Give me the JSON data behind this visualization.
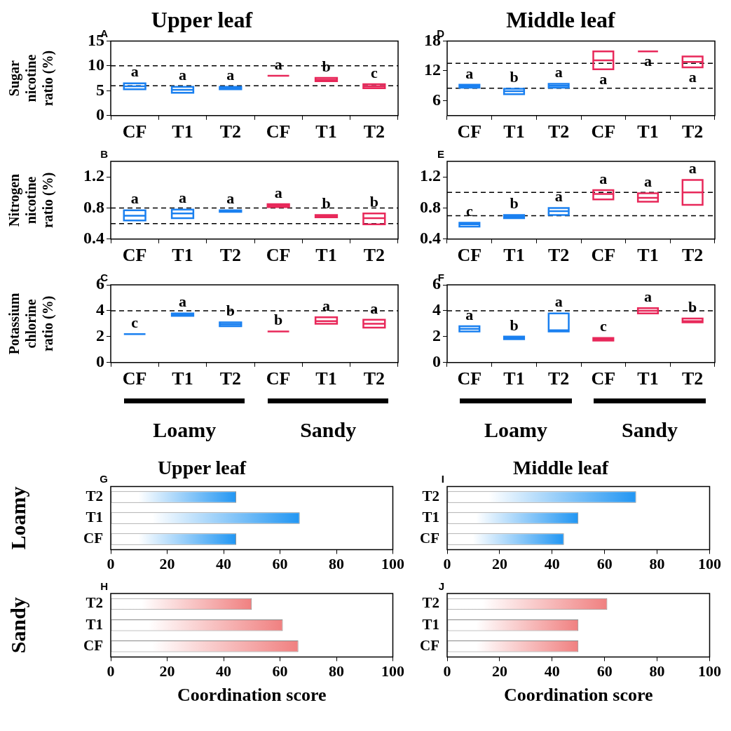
{
  "chart_data": [
    {
      "type": "box",
      "title": "Upper leaf",
      "subtitle": "A",
      "ylabel": "Sugar\nnicotine\nratio (%)",
      "categories": [
        "CF",
        "T1",
        "T2",
        "CF",
        "T1",
        "T2"
      ],
      "ylim": [
        0,
        15
      ],
      "yticks": [
        0,
        5,
        10,
        15
      ],
      "series": [
        {
          "color": "#1a80f0",
          "value_labels": [
            "a",
            "a",
            "a",
            null,
            null,
            null
          ],
          "boxes": [
            {
              "low": 5.3,
              "q1": 5.3,
              "median": 5.9,
              "q3": 6.5,
              "high": 6.5
            },
            {
              "low": 4.6,
              "q1": 4.6,
              "median": 5.2,
              "q3": 5.8,
              "high": 5.8
            },
            {
              "low": 5.3,
              "q1": 5.3,
              "median": 5.5,
              "q3": 5.8,
              "high": 5.8
            },
            null,
            null,
            null
          ]
        },
        {
          "color": "#e8285a",
          "value_labels": [
            null,
            null,
            null,
            "a",
            "b",
            "c"
          ],
          "boxes": [
            null,
            null,
            null,
            {
              "low": 8,
              "q1": 8,
              "median": 8,
              "q3": 8,
              "high": 8
            },
            {
              "low": 6.9,
              "q1": 6.9,
              "median": 7.2,
              "q3": 7.6,
              "high": 7.6
            },
            {
              "low": 5.5,
              "q1": 5.5,
              "median": 5.9,
              "q3": 6.3,
              "high": 6.3
            }
          ]
        }
      ],
      "ref_lines": [
        {
          "axis": "y",
          "value": 10,
          "line_style": "dashed"
        },
        {
          "axis": "y",
          "value": 6,
          "line_style": "dashed"
        }
      ]
    },
    {
      "type": "box",
      "title": "Middle leaf",
      "subtitle": "D",
      "categories": [
        "CF",
        "T1",
        "T2",
        "CF",
        "T1",
        "T2"
      ],
      "ylim": [
        3,
        18
      ],
      "yticks": [
        6,
        12,
        18
      ],
      "series": [
        {
          "color": "#1a80f0",
          "value_labels": [
            "a",
            "b",
            "a",
            null,
            null,
            null
          ],
          "boxes": [
            {
              "low": 8.6,
              "q1": 8.6,
              "median": 8.9,
              "q3": 9.2,
              "high": 9.2
            },
            {
              "low": 7.3,
              "q1": 7.3,
              "median": 7.9,
              "q3": 8.4,
              "high": 8.4
            },
            {
              "low": 8.6,
              "q1": 8.6,
              "median": 9,
              "q3": 9.4,
              "high": 9.4
            },
            null,
            null,
            null
          ]
        },
        {
          "color": "#e8285a",
          "value_labels": [
            null,
            null,
            null,
            "a",
            "a",
            "a"
          ],
          "boxes": [
            null,
            null,
            null,
            {
              "low": 12.3,
              "q1": 12.3,
              "median": 14.1,
              "q3": 15.9,
              "high": 15.9
            },
            {
              "low": 15.9,
              "q1": 15.9,
              "median": 15.9,
              "q3": 15.9,
              "high": 15.9
            },
            {
              "low": 12.7,
              "q1": 12.7,
              "median": 13.8,
              "q3": 14.9,
              "high": 14.9
            }
          ]
        }
      ],
      "ref_lines": [
        {
          "axis": "y",
          "value": 13.5,
          "line_style": "dashed"
        },
        {
          "axis": "y",
          "value": 8.5,
          "line_style": "dashed"
        }
      ]
    },
    {
      "type": "box",
      "subtitle": "B",
      "ylabel": "Nitrogen\nnicotine\nratio (%)",
      "categories": [
        "CF",
        "T1",
        "T2",
        "CF",
        "T1",
        "T2"
      ],
      "ylim": [
        0.4,
        1.4
      ],
      "yticks": [
        0.4,
        0.8,
        1.2
      ],
      "series": [
        {
          "color": "#1a80f0",
          "value_labels": [
            "a",
            "a",
            "a",
            null,
            null,
            null
          ],
          "boxes": [
            {
              "low": 0.64,
              "q1": 0.64,
              "median": 0.7,
              "q3": 0.77,
              "high": 0.77
            },
            {
              "low": 0.67,
              "q1": 0.67,
              "median": 0.73,
              "q3": 0.78,
              "high": 0.78
            },
            {
              "low": 0.75,
              "q1": 0.75,
              "median": 0.76,
              "q3": 0.77,
              "high": 0.77
            },
            null,
            null,
            null
          ]
        },
        {
          "color": "#e8285a",
          "value_labels": [
            null,
            null,
            null,
            "a",
            "b",
            "b"
          ],
          "boxes": [
            null,
            null,
            null,
            {
              "low": 0.81,
              "q1": 0.81,
              "median": 0.83,
              "q3": 0.85,
              "high": 0.85
            },
            {
              "low": 0.68,
              "q1": 0.68,
              "median": 0.7,
              "q3": 0.71,
              "high": 0.71
            },
            {
              "low": 0.59,
              "q1": 0.59,
              "median": 0.67,
              "q3": 0.73,
              "high": 0.73
            }
          ]
        }
      ],
      "ref_lines": [
        {
          "axis": "y",
          "value": 0.8,
          "line_style": "dashed"
        },
        {
          "axis": "y",
          "value": 0.6,
          "line_style": "dashed"
        }
      ]
    },
    {
      "type": "box",
      "subtitle": "E",
      "categories": [
        "CF",
        "T1",
        "T2",
        "CF",
        "T1",
        "T2"
      ],
      "ylim": [
        0.4,
        1.4
      ],
      "yticks": [
        0.4,
        0.8,
        1.2
      ],
      "series": [
        {
          "color": "#1a80f0",
          "value_labels": [
            "c",
            "b",
            "a",
            null,
            null,
            null
          ],
          "boxes": [
            {
              "low": 0.56,
              "q1": 0.56,
              "median": 0.59,
              "q3": 0.61,
              "high": 0.61
            },
            {
              "low": 0.67,
              "q1": 0.67,
              "median": 0.69,
              "q3": 0.71,
              "high": 0.71
            },
            {
              "low": 0.71,
              "q1": 0.71,
              "median": 0.76,
              "q3": 0.8,
              "high": 0.8
            },
            null,
            null,
            null
          ]
        },
        {
          "color": "#e8285a",
          "value_labels": [
            null,
            null,
            null,
            "a",
            "a",
            "a"
          ],
          "boxes": [
            null,
            null,
            null,
            {
              "low": 0.91,
              "q1": 0.91,
              "median": 0.98,
              "q3": 1.03,
              "high": 1.03
            },
            {
              "low": 0.88,
              "q1": 0.88,
              "median": 0.93,
              "q3": 0.99,
              "high": 0.99
            },
            {
              "low": 0.84,
              "q1": 0.84,
              "median": 1,
              "q3": 1.16,
              "high": 1.16
            }
          ]
        }
      ],
      "ref_lines": [
        {
          "axis": "y",
          "value": 1,
          "line_style": "dashed"
        },
        {
          "axis": "y",
          "value": 0.7,
          "line_style": "dashed"
        }
      ]
    },
    {
      "type": "box",
      "subtitle": "C",
      "ylabel": "Potassium\nchlorine\nratio (%)",
      "categories": [
        "CF",
        "T1",
        "T2",
        "CF",
        "T1",
        "T2"
      ],
      "ylim": [
        0,
        6
      ],
      "yticks": [
        0,
        2,
        4,
        6
      ],
      "series": [
        {
          "color": "#1a80f0",
          "value_labels": [
            "c",
            "a",
            "b",
            null,
            null,
            null
          ],
          "boxes": [
            {
              "low": 2.2,
              "q1": 2.2,
              "median": 2.2,
              "q3": 2.2,
              "high": 2.2
            },
            {
              "low": 3.6,
              "q1": 3.6,
              "median": 3.7,
              "q3": 3.8,
              "high": 3.8
            },
            {
              "low": 2.8,
              "q1": 2.8,
              "median": 2.95,
              "q3": 3.1,
              "high": 3.1
            },
            null,
            null,
            null
          ]
        },
        {
          "color": "#e8285a",
          "value_labels": [
            null,
            null,
            null,
            "b",
            "a",
            "a"
          ],
          "boxes": [
            null,
            null,
            null,
            {
              "low": 2.4,
              "q1": 2.4,
              "median": 2.4,
              "q3": 2.4,
              "high": 2.4
            },
            {
              "low": 3,
              "q1": 3,
              "median": 3.2,
              "q3": 3.5,
              "high": 3.5
            },
            {
              "low": 2.7,
              "q1": 2.7,
              "median": 3,
              "q3": 3.3,
              "high": 3.3
            }
          ]
        }
      ],
      "ref_lines": [
        {
          "axis": "y",
          "value": 4,
          "line_style": "dashed"
        }
      ],
      "annotations": [
        "Loamy",
        "Sandy"
      ]
    },
    {
      "type": "box",
      "subtitle": "F",
      "categories": [
        "CF",
        "T1",
        "T2",
        "CF",
        "T1",
        "T2"
      ],
      "ylim": [
        0,
        6
      ],
      "yticks": [
        0,
        2,
        4,
        6
      ],
      "series": [
        {
          "color": "#1a80f0",
          "value_labels": [
            "a",
            "b",
            "a",
            null,
            null,
            null
          ],
          "boxes": [
            {
              "low": 2.4,
              "q1": 2.4,
              "median": 2.6,
              "q3": 2.8,
              "high": 2.8
            },
            {
              "low": 1.8,
              "q1": 1.8,
              "median": 1.9,
              "q3": 2,
              "high": 2
            },
            {
              "low": 2.4,
              "q1": 2.4,
              "median": 2.5,
              "q3": 3.8,
              "high": 3.8
            },
            null,
            null,
            null
          ]
        },
        {
          "color": "#e8285a",
          "value_labels": [
            null,
            null,
            null,
            "c",
            "a",
            "b"
          ],
          "boxes": [
            null,
            null,
            null,
            {
              "low": 1.7,
              "q1": 1.7,
              "median": 1.8,
              "q3": 1.9,
              "high": 1.9
            },
            {
              "low": 3.8,
              "q1": 3.8,
              "median": 4,
              "q3": 4.2,
              "high": 4.2
            },
            {
              "low": 3.1,
              "q1": 3.1,
              "median": 3.2,
              "q3": 3.4,
              "high": 3.4
            }
          ]
        }
      ],
      "ref_lines": [
        {
          "axis": "y",
          "value": 4,
          "line_style": "dashed"
        }
      ],
      "annotations": [
        "Loamy",
        "Sandy"
      ]
    },
    {
      "type": "bar",
      "orientation": "horizontal",
      "title": "Upper leaf",
      "subtitle": "G",
      "ylabel": "Loamy",
      "categories": [
        "T2",
        "T1",
        "CF"
      ],
      "values": [
        44.5,
        67,
        44.5
      ],
      "color": "#2196f3",
      "xlim": [
        0,
        100
      ],
      "xticks": [
        0,
        20,
        40,
        60,
        80,
        100
      ]
    },
    {
      "type": "bar",
      "orientation": "horizontal",
      "title": "Middle leaf",
      "subtitle": "I",
      "categories": [
        "T2",
        "T1",
        "CF"
      ],
      "values": [
        72,
        50,
        44.5
      ],
      "color": "#2196f3",
      "xlim": [
        0,
        100
      ],
      "xticks": [
        0,
        20,
        40,
        60,
        80,
        100
      ]
    },
    {
      "type": "bar",
      "orientation": "horizontal",
      "subtitle": "H",
      "ylabel": "Sandy",
      "xlabel": "Coordination score",
      "categories": [
        "T2",
        "T1",
        "CF"
      ],
      "values": [
        50,
        61,
        66.5
      ],
      "color": "#f08080",
      "xlim": [
        0,
        100
      ],
      "xticks": [
        0,
        20,
        40,
        60,
        80,
        100
      ]
    },
    {
      "type": "bar",
      "orientation": "horizontal",
      "subtitle": "J",
      "xlabel": "Coordination score",
      "categories": [
        "T2",
        "T1",
        "CF"
      ],
      "values": [
        61,
        50,
        50
      ],
      "color": "#f08080",
      "xlim": [
        0,
        100
      ],
      "xticks": [
        0,
        20,
        40,
        60,
        80,
        100
      ]
    }
  ]
}
